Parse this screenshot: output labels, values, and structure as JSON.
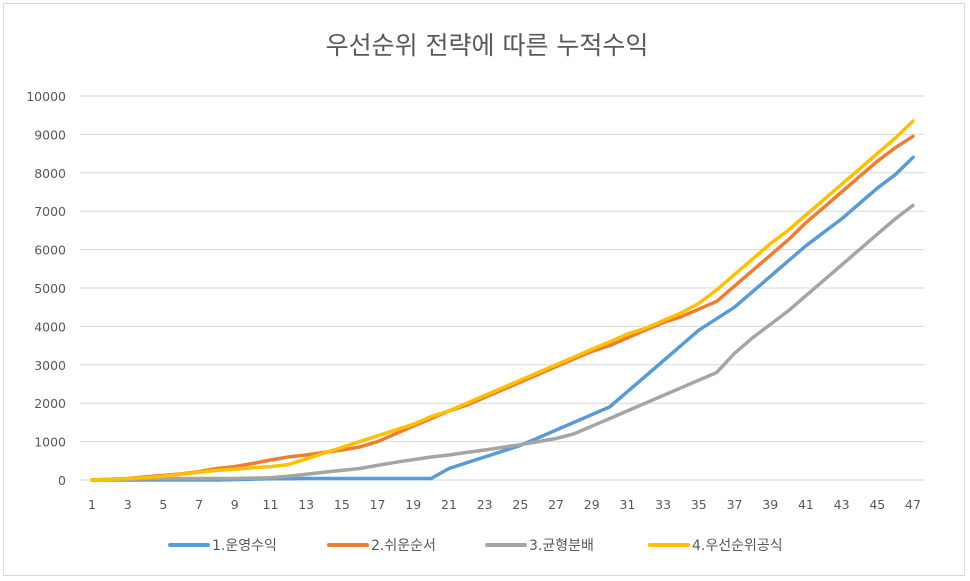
{
  "chart_data": {
    "type": "line",
    "title": "우선순위 전략에 따른 누적수익",
    "xlabel": "",
    "ylabel": "",
    "ylim": [
      0,
      10000
    ],
    "yticks": [
      0,
      1000,
      2000,
      3000,
      4000,
      5000,
      6000,
      7000,
      8000,
      9000,
      10000
    ],
    "x": [
      1,
      2,
      3,
      4,
      5,
      6,
      7,
      8,
      9,
      10,
      11,
      12,
      13,
      14,
      15,
      16,
      17,
      18,
      19,
      20,
      21,
      22,
      23,
      24,
      25,
      26,
      27,
      28,
      29,
      30,
      31,
      32,
      33,
      34,
      35,
      36,
      37,
      38,
      39,
      40,
      41,
      42,
      43,
      44,
      45,
      46,
      47
    ],
    "x_tick_labels": [
      "1",
      "3",
      "5",
      "7",
      "9",
      "11",
      "13",
      "15",
      "17",
      "19",
      "21",
      "23",
      "25",
      "27",
      "29",
      "31",
      "33",
      "35",
      "37",
      "39",
      "41",
      "43",
      "45",
      "47"
    ],
    "legend_position": "bottom",
    "grid": true,
    "series": [
      {
        "name": "1.운영수익",
        "color": "#5b9bd5",
        "values": [
          0,
          0,
          0,
          0,
          0,
          0,
          0,
          0,
          10,
          20,
          30,
          35,
          40,
          40,
          40,
          40,
          40,
          40,
          40,
          40,
          300,
          450,
          600,
          750,
          900,
          1100,
          1300,
          1500,
          1700,
          1900,
          2300,
          2700,
          3100,
          3500,
          3900,
          4200,
          4500,
          4900,
          5300,
          5700,
          6100,
          6450,
          6800,
          7200,
          7600,
          7950,
          8400
        ]
      },
      {
        "name": "2.쉬운순서",
        "color": "#ed7d31",
        "values": [
          0,
          20,
          40,
          80,
          120,
          160,
          220,
          300,
          350,
          430,
          520,
          600,
          650,
          720,
          780,
          860,
          1000,
          1200,
          1400,
          1600,
          1800,
          1950,
          2150,
          2350,
          2550,
          2750,
          2950,
          3150,
          3350,
          3500,
          3700,
          3900,
          4100,
          4250,
          4450,
          4650,
          5050,
          5450,
          5850,
          6250,
          6700,
          7100,
          7500,
          7900,
          8300,
          8650,
          8950
        ]
      },
      {
        "name": "3.균형분배",
        "color": "#a5a5a5",
        "values": [
          0,
          10,
          20,
          30,
          40,
          40,
          40,
          40,
          40,
          50,
          60,
          100,
          150,
          200,
          250,
          300,
          380,
          460,
          530,
          600,
          650,
          720,
          780,
          850,
          920,
          1000,
          1080,
          1200,
          1400,
          1600,
          1800,
          2000,
          2200,
          2400,
          2600,
          2800,
          3300,
          3700,
          4050,
          4400,
          4800,
          5200,
          5600,
          6000,
          6400,
          6800,
          7150
        ]
      },
      {
        "name": "4.우선순위공식",
        "color": "#ffc000",
        "values": [
          0,
          20,
          40,
          60,
          100,
          150,
          200,
          250,
          280,
          320,
          350,
          400,
          550,
          700,
          850,
          1000,
          1150,
          1300,
          1450,
          1650,
          1800,
          2000,
          2200,
          2400,
          2600,
          2800,
          3000,
          3200,
          3400,
          3600,
          3800,
          3950,
          4150,
          4350,
          4600,
          4950,
          5350,
          5750,
          6150,
          6500,
          6900,
          7300,
          7700,
          8100,
          8500,
          8900,
          9350
        ]
      }
    ]
  }
}
